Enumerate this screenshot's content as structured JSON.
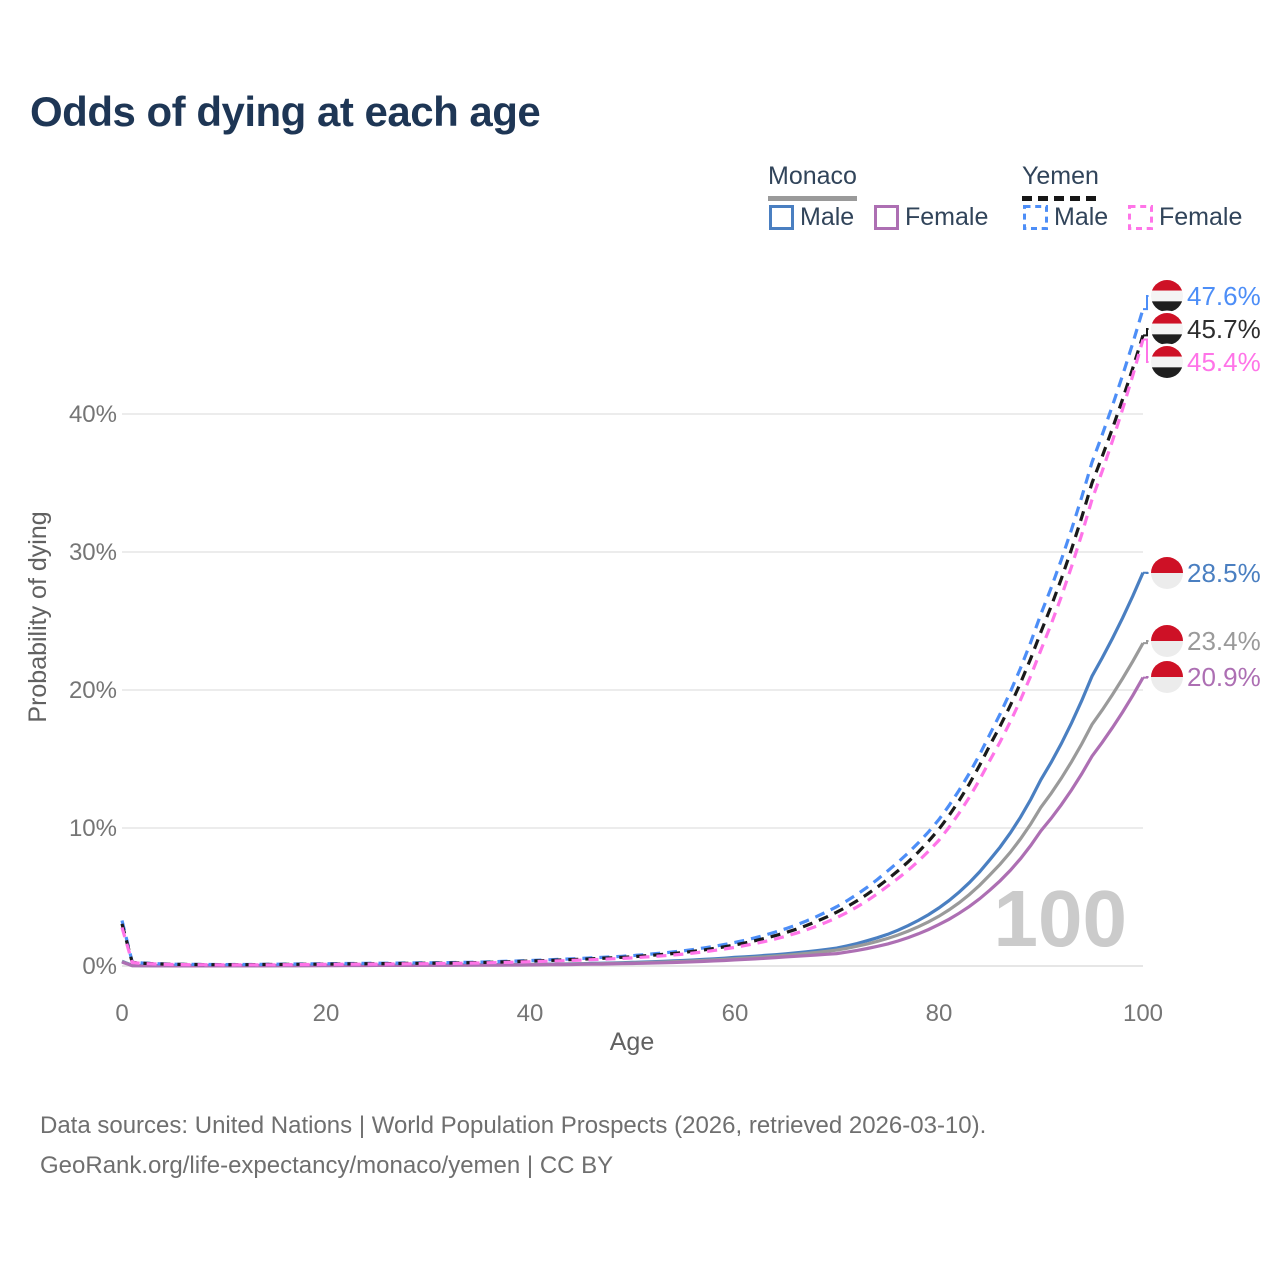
{
  "page": {
    "title": "Odds of dying at each age"
  },
  "legend": {
    "monaco": {
      "label": "Monaco",
      "style": "solid",
      "combined_color": "#9a9a9a",
      "male": {
        "label": "Male",
        "color": "#4a7fc1"
      },
      "female": {
        "label": "Female",
        "color": "#ad6fb3"
      }
    },
    "yemen": {
      "label": "Yemen",
      "style": "dashed",
      "combined_color": "#1a1a1a",
      "male": {
        "label": "Male",
        "color": "#4d8ef7"
      },
      "female": {
        "label": "Female",
        "color": "#ff74e8"
      }
    }
  },
  "axes": {
    "x": {
      "title": "Age",
      "ticks": [
        "0",
        "20",
        "40",
        "60",
        "80",
        "100"
      ]
    },
    "y": {
      "title": "Probability of dying",
      "ticks": [
        "0%",
        "10%",
        "20%",
        "30%",
        "40%"
      ]
    }
  },
  "watermark": "100",
  "footer": {
    "line1": "Data sources: United Nations | World Population Prospects (2026, retrieved 2026-03-10).",
    "line2": "GeoRank.org/life-expectancy/monaco/yemen | CC BY"
  },
  "chart_data": {
    "type": "line",
    "title": "Odds of dying at each age",
    "xlabel": "Age",
    "ylabel": "Probability of dying",
    "xlim": [
      0,
      100
    ],
    "ylim": [
      0,
      48
    ],
    "x_ticks": [
      0,
      20,
      40,
      60,
      80,
      100
    ],
    "y_ticks_pct": [
      0,
      10,
      20,
      30,
      40
    ],
    "grid": "horizontal-only",
    "legend_position": "top-right",
    "ages": [
      0,
      1,
      2,
      5,
      10,
      15,
      20,
      25,
      30,
      35,
      40,
      45,
      50,
      55,
      60,
      65,
      70,
      75,
      80,
      85,
      90,
      95,
      100
    ],
    "series": [
      {
        "id": "monaco_male",
        "country": "Monaco",
        "sex": "Male",
        "color": "#4a7fc1",
        "dashed": false,
        "flag": "monaco",
        "end_value": 28.5,
        "end_label": "28.5%",
        "values_pct": [
          0.35,
          0.04,
          0.03,
          0.02,
          0.02,
          0.03,
          0.05,
          0.06,
          0.07,
          0.09,
          0.12,
          0.17,
          0.26,
          0.4,
          0.62,
          0.88,
          1.3,
          2.3,
          4.2,
          7.7,
          13.5,
          21.0,
          28.5
        ]
      },
      {
        "id": "monaco_both",
        "country": "Monaco",
        "sex": "Both sexes",
        "color": "#9a9a9a",
        "dashed": false,
        "flag": "monaco",
        "end_value": 23.4,
        "end_label": "23.4%",
        "values_pct": [
          0.32,
          0.03,
          0.02,
          0.02,
          0.02,
          0.02,
          0.04,
          0.05,
          0.06,
          0.08,
          0.1,
          0.15,
          0.22,
          0.34,
          0.53,
          0.77,
          1.15,
          2.0,
          3.6,
          6.6,
          11.5,
          17.5,
          23.4
        ]
      },
      {
        "id": "monaco_female",
        "country": "Monaco",
        "sex": "Female",
        "color": "#ad6fb3",
        "dashed": false,
        "flag": "monaco",
        "end_value": 20.9,
        "end_label": "20.9%",
        "values_pct": [
          0.28,
          0.03,
          0.02,
          0.01,
          0.01,
          0.02,
          0.03,
          0.04,
          0.05,
          0.06,
          0.08,
          0.12,
          0.18,
          0.28,
          0.44,
          0.66,
          0.9,
          1.6,
          3.0,
          5.5,
          9.8,
          15.2,
          20.9
        ]
      },
      {
        "id": "yemen_male",
        "country": "Yemen",
        "sex": "Male",
        "color": "#4d8ef7",
        "dashed": true,
        "flag": "yemen",
        "end_value": 47.6,
        "end_label": "47.6%",
        "values_pct": [
          3.3,
          0.3,
          0.22,
          0.13,
          0.1,
          0.13,
          0.17,
          0.2,
          0.23,
          0.28,
          0.4,
          0.55,
          0.75,
          1.1,
          1.7,
          2.7,
          4.3,
          6.9,
          10.6,
          16.8,
          25.5,
          36.5,
          47.6
        ]
      },
      {
        "id": "yemen_both",
        "country": "Yemen",
        "sex": "Both sexes",
        "color": "#1a1a1a",
        "dashed": true,
        "flag": "yemen",
        "end_value": 45.7,
        "end_label": "45.7%",
        "label_color": "#2d2d2d",
        "values_pct": [
          3.05,
          0.27,
          0.2,
          0.12,
          0.09,
          0.11,
          0.14,
          0.17,
          0.2,
          0.25,
          0.36,
          0.49,
          0.67,
          0.98,
          1.52,
          2.42,
          3.9,
          6.3,
          9.9,
          16.0,
          24.2,
          35.0,
          45.7
        ]
      },
      {
        "id": "yemen_female",
        "country": "Yemen",
        "sex": "Female",
        "color": "#ff74e8",
        "dashed": true,
        "flag": "yemen",
        "end_value": 45.4,
        "end_label": "45.4%",
        "values_pct": [
          2.8,
          0.25,
          0.18,
          0.11,
          0.08,
          0.09,
          0.12,
          0.14,
          0.17,
          0.22,
          0.31,
          0.43,
          0.59,
          0.86,
          1.35,
          2.15,
          3.5,
          5.8,
          9.1,
          14.9,
          22.9,
          33.8,
          45.4
        ]
      }
    ]
  }
}
